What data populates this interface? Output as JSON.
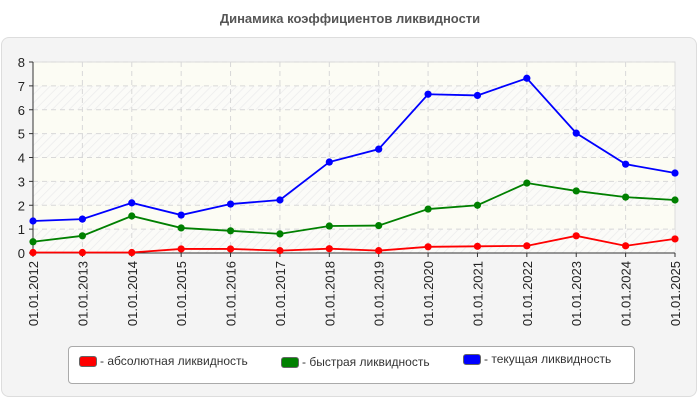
{
  "title": "Динамика коэффициентов ликвидности",
  "chart_data": {
    "type": "line",
    "title": "Динамика коэффициентов ликвидности",
    "xlabel": "",
    "ylabel": "",
    "ylim": [
      0,
      8
    ],
    "yticks": [
      0,
      1,
      2,
      3,
      4,
      5,
      6,
      7,
      8
    ],
    "grid": true,
    "legend_position": "bottom",
    "categories": [
      "01.01.2012",
      "01.01.2013",
      "01.01.2014",
      "01.01.2015",
      "01.01.2016",
      "01.01.2017",
      "01.01.2018",
      "01.01.2019",
      "01.01.2020",
      "01.01.2021",
      "01.01.2022",
      "01.01.2023",
      "01.01.2024",
      "01.01.2025"
    ],
    "series": [
      {
        "name": "абсолютная ликвидность",
        "color": "#ff0000",
        "values": [
          0.02,
          0.02,
          0.02,
          0.17,
          0.17,
          0.1,
          0.18,
          0.1,
          0.26,
          0.28,
          0.3,
          0.72,
          0.3,
          0.59
        ]
      },
      {
        "name": "быстрая ликвидность",
        "color": "#008000",
        "values": [
          0.47,
          0.72,
          1.55,
          1.05,
          0.93,
          0.8,
          1.13,
          1.15,
          1.84,
          2.0,
          2.93,
          2.6,
          2.34,
          2.22
        ]
      },
      {
        "name": "текущая ликвидность",
        "color": "#0000ff",
        "values": [
          1.34,
          1.42,
          2.1,
          1.59,
          2.05,
          2.22,
          3.81,
          4.35,
          6.65,
          6.6,
          7.32,
          5.02,
          3.72,
          3.35
        ]
      }
    ]
  },
  "legend": {
    "items": [
      {
        "label": "- абсолютная ликвидность",
        "color": "#ff0000"
      },
      {
        "label": "- быстрая ликвидность",
        "color": "#008000"
      },
      {
        "label": "- текущая ликвидность",
        "color": "#0000ff"
      }
    ]
  }
}
